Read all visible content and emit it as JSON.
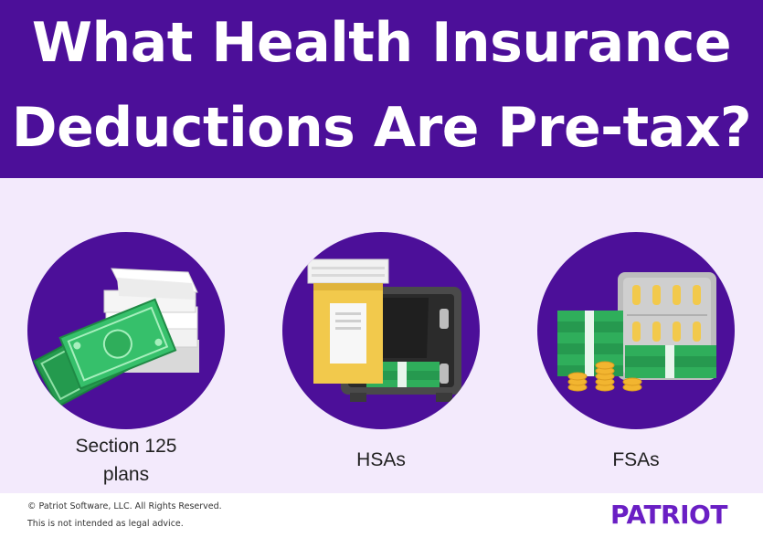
{
  "header": {
    "title_line1": "What Health Insurance",
    "title_line2": "Deductions Are Pre-tax?"
  },
  "items": [
    {
      "label_line1": "Section 125",
      "label_line2": "plans",
      "icon": "cash-and-paper-stack-icon"
    },
    {
      "label": "HSAs",
      "icon": "pill-bottle-and-safe-icon"
    },
    {
      "label": "FSAs",
      "icon": "pills-and-cash-stack-icon"
    }
  ],
  "footer": {
    "copyright": "© Patriot Software, LLC. All Rights Reserved.",
    "disclaimer": "This is not intended as legal advice.",
    "logo_text": "PATRIOT"
  },
  "colors": {
    "header_bg": "#4c0f99",
    "panel_bg": "#f3eafc",
    "circle_bg": "#4c0f99",
    "cash_green": "#2fae5b",
    "logo_purple": "#6a1fc4"
  }
}
